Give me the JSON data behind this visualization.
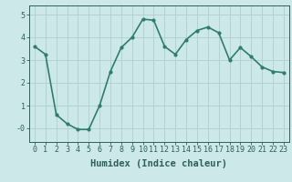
{
  "x": [
    0,
    1,
    2,
    3,
    4,
    5,
    6,
    7,
    8,
    9,
    10,
    11,
    12,
    13,
    14,
    15,
    16,
    17,
    18,
    19,
    20,
    21,
    22,
    23
  ],
  "y": [
    3.6,
    3.25,
    0.6,
    0.2,
    -0.05,
    -0.05,
    1.0,
    2.5,
    3.55,
    4.0,
    4.8,
    4.75,
    3.6,
    3.25,
    3.9,
    4.3,
    4.45,
    4.2,
    3.0,
    3.55,
    3.15,
    2.7,
    2.5,
    2.45
  ],
  "line_color": "#2e7d6e",
  "marker": "o",
  "marker_size": 2.0,
  "line_width": 1.2,
  "bg_color": "#cde8e8",
  "grid_color": "#afd0d0",
  "xlabel": "Humidex (Indice chaleur)",
  "xlabel_fontsize": 7.5,
  "tick_color": "#2e5f5a",
  "tick_fontsize": 6.0,
  "ylim": [
    -0.6,
    5.4
  ],
  "xlim": [
    -0.5,
    23.5
  ],
  "yticks": [
    0,
    1,
    2,
    3,
    4,
    5
  ],
  "ytick_labels": [
    "-0",
    "1",
    "2",
    "3",
    "4",
    "5"
  ],
  "xticks": [
    0,
    1,
    2,
    3,
    4,
    5,
    6,
    7,
    8,
    9,
    10,
    11,
    12,
    13,
    14,
    15,
    16,
    17,
    18,
    19,
    20,
    21,
    22,
    23
  ]
}
